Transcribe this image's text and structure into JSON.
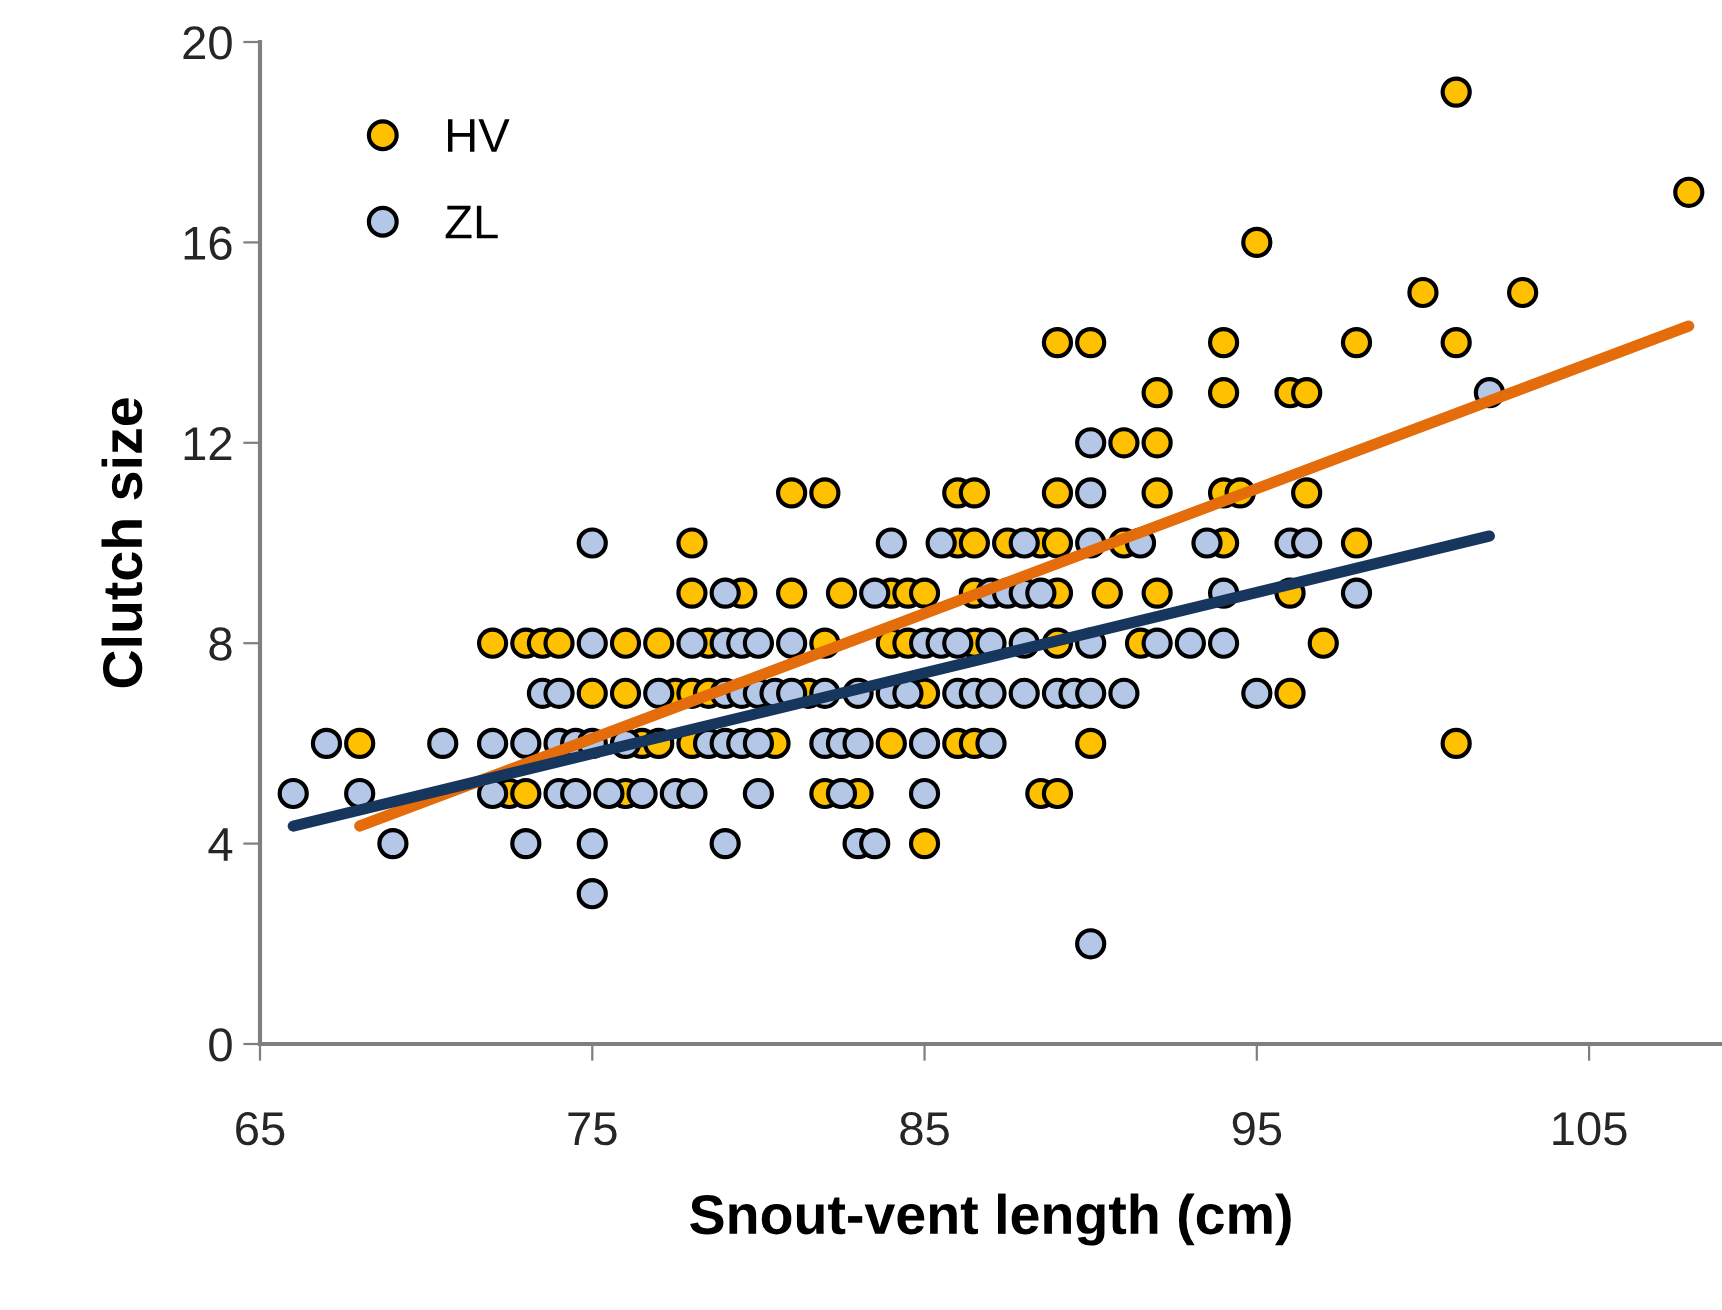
{
  "chart_data": {
    "type": "scatter",
    "xlabel": "Snout-vent length (cm)",
    "ylabel": "Clutch size",
    "xlim": [
      65,
      109
    ],
    "xticks": [
      65,
      75,
      85,
      95,
      105
    ],
    "ylim": [
      0,
      20
    ],
    "yticks": [
      0,
      4,
      8,
      12,
      16,
      20
    ],
    "grid": false,
    "legend": "top left",
    "series": [
      {
        "name": "HV",
        "color": "#ffc000",
        "marker": "circle",
        "x": [
          101,
          108,
          95,
          100,
          103,
          89,
          90,
          94,
          98,
          101,
          92,
          94,
          96,
          96.5,
          91,
          92,
          81,
          82,
          86,
          86.5,
          89,
          92,
          94,
          94.5,
          96.5,
          78,
          86,
          86.5,
          87.5,
          88.5,
          89,
          91,
          94,
          98,
          78,
          79.5,
          81,
          82.5,
          84,
          84.5,
          85,
          86.5,
          89,
          90.5,
          92,
          96,
          72,
          73,
          73.5,
          74,
          76,
          77,
          78.5,
          82,
          84,
          84.5,
          86.5,
          89,
          91.5,
          97,
          75,
          76,
          77.5,
          78,
          78.5,
          81.5,
          85,
          96,
          68,
          76.5,
          77,
          78,
          80.5,
          84,
          86,
          86.5,
          90,
          101,
          72.5,
          73,
          76,
          82,
          83,
          88.5,
          89,
          85
        ],
        "values": [
          19,
          17,
          16,
          15,
          15,
          14,
          14,
          14,
          14,
          14,
          13,
          13,
          13,
          13,
          12,
          12,
          11,
          11,
          11,
          11,
          11,
          11,
          11,
          11,
          11,
          10,
          10,
          10,
          10,
          10,
          10,
          10,
          10,
          10,
          9,
          9,
          9,
          9,
          9,
          9,
          9,
          9,
          9,
          9,
          9,
          9,
          8,
          8,
          8,
          8,
          8,
          8,
          8,
          8,
          8,
          8,
          8,
          8,
          8,
          8,
          7,
          7,
          7,
          7,
          7,
          7,
          7,
          7,
          6,
          6,
          6,
          6,
          6,
          6,
          6,
          6,
          6,
          6,
          5,
          5,
          5,
          5,
          5,
          5,
          5,
          4
        ]
      },
      {
        "name": "ZL",
        "color": "#b4c7e7",
        "marker": "circle",
        "x": [
          102,
          90,
          90,
          75,
          84,
          85.5,
          88,
          90,
          91.5,
          93.5,
          96,
          96.5,
          79,
          83.5,
          87,
          87.5,
          88,
          88.5,
          94,
          98,
          75,
          78,
          79,
          79.5,
          80,
          81,
          85,
          85.5,
          86,
          87,
          88,
          90,
          92,
          93,
          94,
          73.5,
          74,
          77,
          79,
          79.5,
          80,
          80.5,
          81,
          82,
          83,
          84,
          84.5,
          86,
          86.5,
          87,
          88,
          89,
          89.5,
          90,
          91,
          95,
          67,
          70.5,
          72,
          73,
          74,
          74.5,
          75,
          76,
          78.5,
          79,
          79.5,
          80,
          82,
          82.5,
          83,
          85,
          87,
          66,
          68,
          72,
          74,
          74.5,
          75.5,
          76.5,
          77.5,
          78,
          80,
          82.5,
          85,
          69,
          73,
          75,
          79,
          83,
          83.5,
          75,
          90
        ],
        "values": [
          13,
          12,
          11,
          10,
          10,
          10,
          10,
          10,
          10,
          10,
          10,
          10,
          9,
          9,
          9,
          9,
          9,
          9,
          9,
          9,
          8,
          8,
          8,
          8,
          8,
          8,
          8,
          8,
          8,
          8,
          8,
          8,
          8,
          8,
          8,
          7,
          7,
          7,
          7,
          7,
          7,
          7,
          7,
          7,
          7,
          7,
          7,
          7,
          7,
          7,
          7,
          7,
          7,
          7,
          7,
          7,
          6,
          6,
          6,
          6,
          6,
          6,
          6,
          6,
          6,
          6,
          6,
          6,
          6,
          6,
          6,
          6,
          6,
          5,
          5,
          5,
          5,
          5,
          5,
          5,
          5,
          5,
          5,
          5,
          5,
          4,
          4,
          4,
          4,
          4,
          4,
          3,
          2
        ]
      },
      {
        "type": "line",
        "marker": "none",
        "color": "#e46c0a",
        "x": [
          68,
          108
        ],
        "values": [
          4.35,
          14.33
        ]
      },
      {
        "type": "line",
        "marker": "none",
        "color": "#17365d",
        "x": [
          66,
          102
        ],
        "values": [
          4.35,
          10.14
        ]
      }
    ]
  }
}
